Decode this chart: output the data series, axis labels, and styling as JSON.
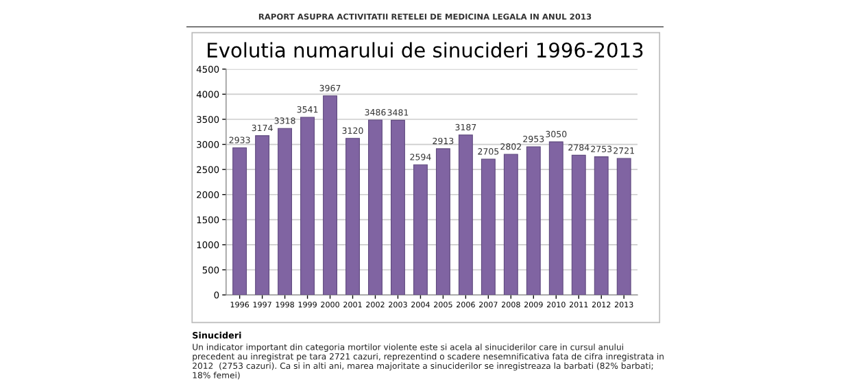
{
  "chart_data": {
    "type": "bar",
    "title": "Evolutia numarului de sinucideri 1996-2013",
    "categories": [
      "1996",
      "1997",
      "1998",
      "1999",
      "2000",
      "2001",
      "2002",
      "2003",
      "2004",
      "2005",
      "2006",
      "2007",
      "2008",
      "2009",
      "2010",
      "2011",
      "2012",
      "2013"
    ],
    "values": [
      2933,
      3174,
      3318,
      3541,
      3967,
      3120,
      3486,
      3481,
      2594,
      2913,
      3187,
      2705,
      2802,
      2953,
      3050,
      2784,
      2753,
      2721
    ],
    "color": "#8064a2",
    "data_labels": true,
    "ylim": [
      0,
      4500
    ],
    "yticks": [
      0,
      500,
      1000,
      1500,
      2000,
      2500,
      3000,
      3500,
      4000,
      4500
    ],
    "grid": "y",
    "annotations": [
      "RAPORT ASUPRA ACTIVITATII RETELEI DE MEDICINA LEGALA IN ANUL 2013",
      "Sinucideri",
      "Un indicator important din categoria mortilor violente este si acela al sinuciderilor care in cursul anului precedent au inregistrat pe tara 2721 cazuri, reprezentind o scadere nesemnificativa fata de cifra inregistrata in 2012  (2753 cazuri). Ca si in alti ani, marea majoritate a sinuciderilor se inregistreaza la barbati (82% barbati; 18% femei)"
    ]
  }
}
